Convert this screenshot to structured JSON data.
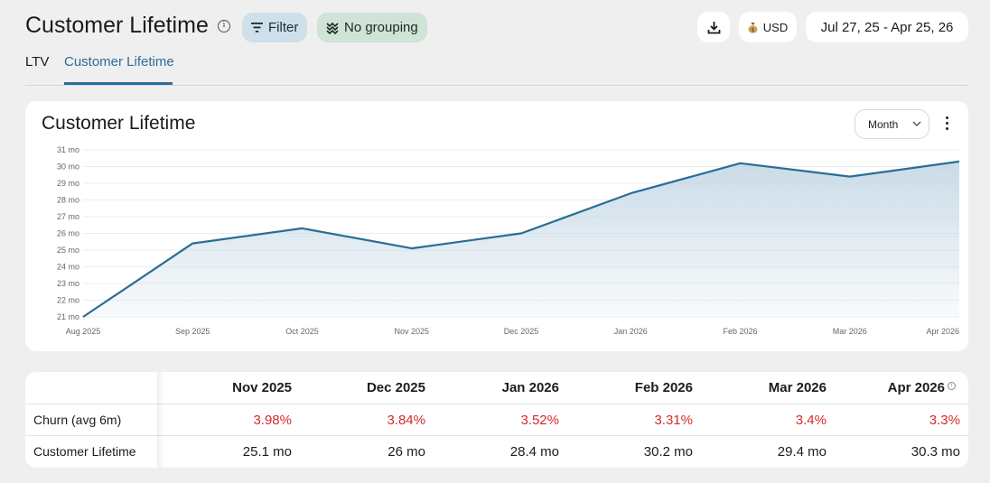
{
  "header": {
    "title": "Customer Lifetime",
    "filter_label": "Filter",
    "grouping_label": "No grouping",
    "currency_label": "USD",
    "date_range": "Jul 27, 25 - Apr 25, 26",
    "icons": {
      "info": "info-icon",
      "filter": "filter-icon",
      "grouping": "grouping-icon",
      "download": "download-icon",
      "currency": "money-bag-icon"
    }
  },
  "tabs": [
    {
      "label": "LTV",
      "active": false
    },
    {
      "label": "Customer Lifetime",
      "active": true
    }
  ],
  "chart_card": {
    "title": "Customer Lifetime",
    "period_select": "Month",
    "menu_icon": "kebab-menu-icon"
  },
  "chart_data": {
    "type": "area",
    "title": "Customer Lifetime",
    "x": [
      "Aug 2025",
      "Sep 2025",
      "Oct 2025",
      "Nov 2025",
      "Dec 2025",
      "Jan 2026",
      "Feb 2026",
      "Mar 2026",
      "Apr 2026"
    ],
    "series": [
      {
        "values": [
          21.0,
          25.4,
          26.3,
          25.1,
          26.0,
          28.4,
          30.2,
          29.4,
          30.3
        ]
      }
    ],
    "ylim": [
      21,
      31
    ],
    "yticks": [
      "21 mo",
      "22 mo",
      "23 mo",
      "24 mo",
      "25 mo",
      "26 mo",
      "27 mo",
      "28 mo",
      "29 mo",
      "30 mo",
      "31 mo"
    ],
    "y_unit": "mo",
    "grid": true,
    "line_color": "#2a6d96",
    "fill_color": "#c6d9e6"
  },
  "table": {
    "columns": [
      "Nov 2025",
      "Dec 2025",
      "Jan 2026",
      "Feb 2026",
      "Mar 2026",
      "Apr 2026"
    ],
    "rows": [
      {
        "label": "Churn (avg 6m)",
        "values": [
          "3.98%",
          "3.84%",
          "3.52%",
          "3.31%",
          "3.4%",
          "3.3%"
        ]
      },
      {
        "label": "Customer Lifetime",
        "values": [
          "25.1 mo",
          "26 mo",
          "28.4 mo",
          "30.2 mo",
          "29.4 mo",
          "30.3 mo"
        ]
      }
    ],
    "churn_color": "#d42a2a"
  }
}
